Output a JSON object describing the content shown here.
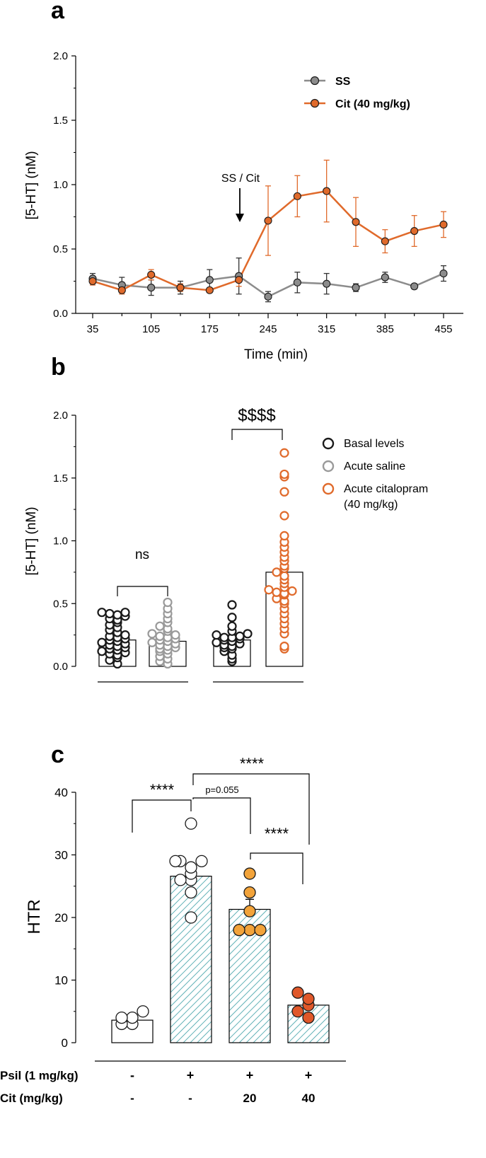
{
  "chart_data": [
    {
      "panel": "a",
      "type": "line",
      "xlabel": "Time (min)",
      "ylabel": "[5-HT] (nM)",
      "xlim": [
        35,
        455
      ],
      "ylim": [
        0,
        2
      ],
      "x_ticks": [
        35,
        105,
        175,
        245,
        315,
        385,
        455
      ],
      "y_ticks": [
        "0.0",
        "0.5",
        "1.0",
        "1.5",
        "2.0"
      ],
      "annotation": "SS / Cit",
      "annotation_x": 210,
      "legend": [
        "SS",
        "Cit (40 mg/kg)"
      ],
      "series": [
        {
          "name": "SS",
          "color": "#8c8c8c",
          "x": [
            35,
            70,
            105,
            140,
            175,
            210,
            245,
            280,
            315,
            350,
            385,
            420,
            455
          ],
          "y": [
            0.27,
            0.22,
            0.2,
            0.2,
            0.26,
            0.29,
            0.13,
            0.24,
            0.23,
            0.2,
            0.28,
            0.21,
            0.31
          ],
          "err": [
            0.04,
            0.06,
            0.06,
            0.05,
            0.08,
            0.14,
            0.04,
            0.08,
            0.08,
            0.03,
            0.04,
            0.02,
            0.06
          ]
        },
        {
          "name": "Cit (40 mg/kg)",
          "color": "#e06a2b",
          "x": [
            35,
            70,
            105,
            140,
            175,
            210,
            245,
            280,
            315,
            350,
            385,
            420,
            455
          ],
          "y": [
            0.25,
            0.18,
            0.3,
            0.2,
            0.18,
            0.26,
            0.72,
            0.91,
            0.95,
            0.71,
            0.56,
            0.64,
            0.69
          ],
          "err": [
            0.03,
            0.03,
            0.04,
            0.03,
            0.02,
            0.05,
            0.27,
            0.16,
            0.24,
            0.19,
            0.09,
            0.12,
            0.1
          ]
        }
      ]
    },
    {
      "panel": "b",
      "type": "bar",
      "ylabel": "[5-HT] (nM)",
      "ylim": [
        0,
        2
      ],
      "y_ticks": [
        "0.0",
        "0.5",
        "1.0",
        "1.5",
        "2.0"
      ],
      "legend": [
        "Basal levels",
        "Acute saline",
        "Acute citalopram",
        "(40 mg/kg)"
      ],
      "comparisons": [
        "ns",
        "$$$$"
      ],
      "groups": [
        {
          "name": "Basal levels",
          "color": "#1a1a1a",
          "mean": 0.21,
          "points": [
            0.02,
            0.05,
            0.07,
            0.09,
            0.1,
            0.11,
            0.12,
            0.13,
            0.14,
            0.15,
            0.16,
            0.17,
            0.18,
            0.19,
            0.2,
            0.21,
            0.22,
            0.23,
            0.24,
            0.25,
            0.27,
            0.29,
            0.31,
            0.33,
            0.35,
            0.37,
            0.38,
            0.4,
            0.41,
            0.42,
            0.43,
            0.43
          ]
        },
        {
          "name": "Acute saline",
          "color": "#9a9a9a",
          "mean": 0.2,
          "points": [
            0.02,
            0.04,
            0.06,
            0.08,
            0.1,
            0.12,
            0.13,
            0.14,
            0.15,
            0.16,
            0.17,
            0.18,
            0.19,
            0.2,
            0.21,
            0.22,
            0.23,
            0.24,
            0.25,
            0.26,
            0.28,
            0.3,
            0.32,
            0.35,
            0.38,
            0.42,
            0.46,
            0.51
          ]
        },
        {
          "name": "Basal levels",
          "color": "#1a1a1a",
          "mean": 0.21,
          "points": [
            0.04,
            0.06,
            0.09,
            0.12,
            0.14,
            0.15,
            0.16,
            0.17,
            0.18,
            0.19,
            0.2,
            0.21,
            0.22,
            0.23,
            0.23,
            0.24,
            0.25,
            0.26,
            0.28,
            0.32,
            0.39,
            0.49
          ]
        },
        {
          "name": "Acute citalopram (40 mg/kg)",
          "color": "#e06a2b",
          "mean": 0.75,
          "points": [
            0.14,
            0.16,
            0.26,
            0.3,
            0.34,
            0.38,
            0.42,
            0.46,
            0.5,
            0.52,
            0.54,
            0.57,
            0.58,
            0.59,
            0.6,
            0.61,
            0.63,
            0.66,
            0.69,
            0.72,
            0.75,
            0.78,
            0.8,
            0.84,
            0.87,
            0.91,
            0.95,
            0.99,
            1.04,
            1.2,
            1.39,
            1.51,
            1.53,
            1.7
          ]
        }
      ]
    },
    {
      "panel": "c",
      "type": "bar",
      "ylabel": "HTR",
      "ylim": [
        0,
        40
      ],
      "y_ticks": [
        "0",
        "10",
        "20",
        "30",
        "40"
      ],
      "row_labels": [
        "Psil (1 mg/kg)",
        "Cit (mg/kg)"
      ],
      "treatments": {
        "psil": [
          "-",
          "+",
          "+",
          "+"
        ],
        "cit": [
          "-",
          "-",
          "20",
          "40"
        ]
      },
      "comparisons": [
        "****",
        "p=0.055",
        "****",
        "****"
      ],
      "groups": [
        {
          "mean": 3.6,
          "sem": 0.6,
          "hatched": false,
          "color": "#ffffff",
          "points": [
            3,
            3,
            4,
            4,
            5
          ]
        },
        {
          "mean": 26.6,
          "sem": 1.5,
          "hatched": true,
          "color": "#ffffff",
          "points": [
            20,
            24,
            26,
            26,
            27,
            28,
            29,
            29,
            29,
            35
          ]
        },
        {
          "mean": 21.3,
          "sem": 1.6,
          "hatched": true,
          "color": "#f2a33a",
          "points": [
            18,
            18,
            18,
            21,
            24,
            27
          ]
        },
        {
          "mean": 6.0,
          "sem": 0.7,
          "hatched": true,
          "color": "#e0582a",
          "points": [
            4,
            5,
            6,
            7,
            8
          ]
        }
      ]
    }
  ],
  "panel_labels": [
    "a",
    "b",
    "c"
  ]
}
